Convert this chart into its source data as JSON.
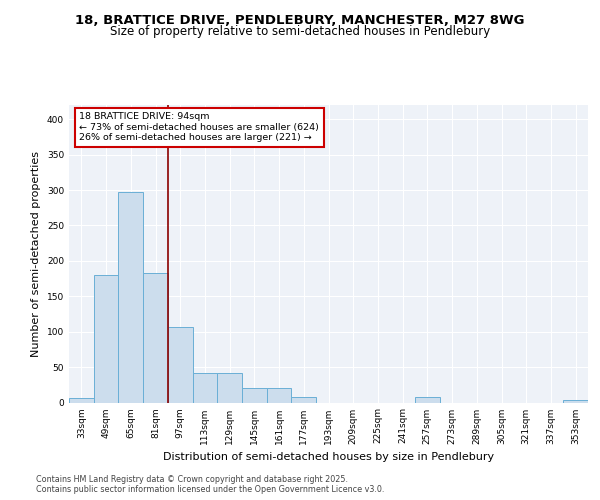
{
  "title1": "18, BRATTICE DRIVE, PENDLEBURY, MANCHESTER, M27 8WG",
  "title2": "Size of property relative to semi-detached houses in Pendlebury",
  "xlabel": "Distribution of semi-detached houses by size in Pendlebury",
  "ylabel": "Number of semi-detached properties",
  "categories": [
    "33sqm",
    "49sqm",
    "65sqm",
    "81sqm",
    "97sqm",
    "113sqm",
    "129sqm",
    "145sqm",
    "161sqm",
    "177sqm",
    "193sqm",
    "209sqm",
    "225sqm",
    "241sqm",
    "257sqm",
    "273sqm",
    "289sqm",
    "305sqm",
    "321sqm",
    "337sqm",
    "353sqm"
  ],
  "values": [
    7,
    180,
    297,
    183,
    107,
    42,
    42,
    20,
    20,
    8,
    0,
    0,
    0,
    0,
    8,
    0,
    0,
    0,
    0,
    0,
    3
  ],
  "bar_color": "#ccdded",
  "bar_edge_color": "#6aafd6",
  "vline_color": "#8b0000",
  "annotation_text": "18 BRATTICE DRIVE: 94sqm\n← 73% of semi-detached houses are smaller (624)\n26% of semi-detached houses are larger (221) →",
  "annotation_box_color": "#ffffff",
  "annotation_box_edge": "#cc0000",
  "ylim": [
    0,
    420
  ],
  "yticks": [
    0,
    50,
    100,
    150,
    200,
    250,
    300,
    350,
    400
  ],
  "footer1": "Contains HM Land Registry data © Crown copyright and database right 2025.",
  "footer2": "Contains public sector information licensed under the Open Government Licence v3.0.",
  "bg_color": "#eef2f8",
  "grid_color": "#ffffff",
  "title_fontsize": 9.5,
  "subtitle_fontsize": 8.5,
  "tick_fontsize": 6.5,
  "ylabel_fontsize": 8,
  "xlabel_fontsize": 8,
  "footer_fontsize": 5.8
}
